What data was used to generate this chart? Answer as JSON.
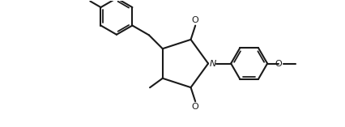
{
  "bg_color": "#ffffff",
  "line_color": "#1a1a1a",
  "lw": 1.5,
  "figsize": [
    4.26,
    1.57
  ],
  "dpi": 100,
  "xlim": [
    0.0,
    8.5
  ],
  "ylim": [
    0.2,
    3.8
  ]
}
